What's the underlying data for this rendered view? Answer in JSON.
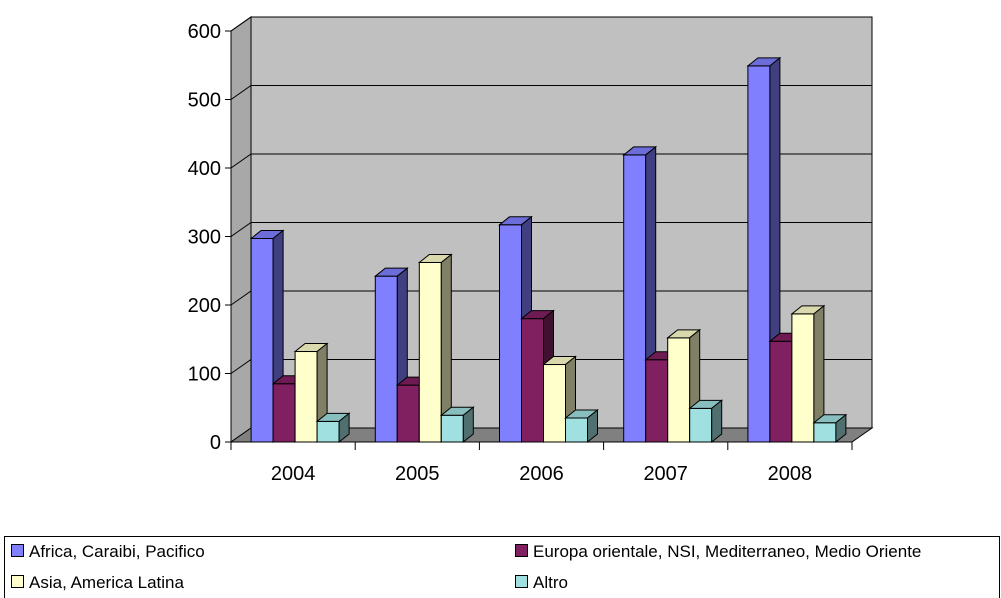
{
  "chart_data": {
    "type": "bar",
    "categories": [
      "2004",
      "2005",
      "2006",
      "2007",
      "2008"
    ],
    "series": [
      {
        "name": "Africa, Caraibi, Pacifico",
        "values": [
          300,
          245,
          320,
          422,
          552
        ],
        "color": "#8080ff"
      },
      {
        "name": "Europa orientale, NSI, Mediterraneo, Medio Oriente",
        "values": [
          88,
          86,
          183,
          123,
          150
        ],
        "color": "#802060"
      },
      {
        "name": "Asia, America Latina",
        "values": [
          135,
          265,
          116,
          155,
          190
        ],
        "color": "#ffffcc"
      },
      {
        "name": "Altro",
        "values": [
          33,
          42,
          38,
          52,
          31
        ],
        "color": "#a0e0e0"
      }
    ],
    "y_ticks": [
      "0",
      "100",
      "200",
      "300",
      "400",
      "500",
      "600"
    ],
    "ylim": [
      0,
      600
    ],
    "grid": true,
    "three_d": true,
    "wall_color": "#c0c0c0",
    "floor_color": "#808080",
    "legend_position": "bottom",
    "title": "",
    "xlabel": "",
    "ylabel": ""
  }
}
